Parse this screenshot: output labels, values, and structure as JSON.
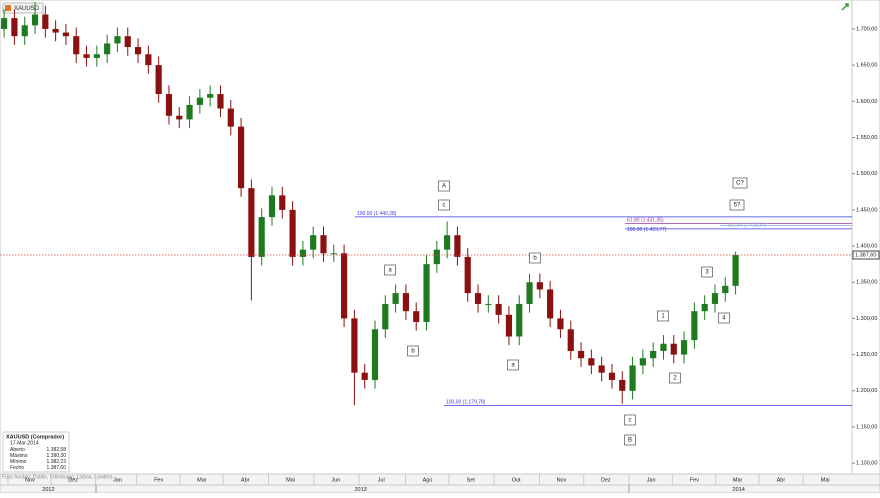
{
  "chart_data": {
    "type": "candlestick",
    "title": "XAUUSD",
    "categories": [
      null,
      null,
      null,
      null,
      null,
      null,
      null,
      null,
      null,
      null,
      null,
      null,
      null,
      null,
      null,
      null,
      null,
      null,
      null,
      null,
      null,
      null,
      null,
      null,
      null,
      null,
      null,
      null,
      null,
      null,
      null,
      null,
      null,
      null,
      null,
      null,
      null,
      null,
      null,
      null,
      null,
      null,
      null,
      null,
      null,
      null,
      null,
      null,
      null,
      null,
      null,
      null,
      null,
      null,
      null,
      null,
      null,
      null,
      null,
      null,
      null,
      null,
      null,
      null,
      null,
      null,
      null,
      null,
      null,
      null,
      null,
      null
    ],
    "open": [
      1700,
      1715,
      1690,
      1705,
      1720,
      1700,
      1695,
      1690,
      1665,
      1660,
      1665,
      1680,
      1690,
      1675,
      1665,
      1650,
      1610,
      1580,
      1575,
      1595,
      1605,
      1610,
      1590,
      1565,
      1480,
      1385,
      1440,
      1470,
      1450,
      1385,
      1395,
      1415,
      1390,
      1390,
      1300,
      1225,
      1215,
      1285,
      1320,
      1335,
      1310,
      1295,
      1375,
      1395,
      1415,
      1385,
      1335,
      1320,
      1320,
      1305,
      1275,
      1320,
      1350,
      1340,
      1300,
      1285,
      1255,
      1245,
      1235,
      1225,
      1215,
      1200,
      1235,
      1245,
      1255,
      1265,
      1250,
      1270,
      1310,
      1320,
      1335,
      1345
    ],
    "high": [
      1727,
      1727,
      1717,
      1737,
      1732,
      1712,
      1707,
      1702,
      1677,
      1677,
      1692,
      1702,
      1702,
      1687,
      1677,
      1662,
      1622,
      1592,
      1607,
      1617,
      1622,
      1622,
      1602,
      1577,
      1492,
      1452,
      1482,
      1482,
      1462,
      1407,
      1427,
      1427,
      1402,
      1402,
      1312,
      1237,
      1297,
      1332,
      1347,
      1347,
      1322,
      1387,
      1407,
      1434,
      1427,
      1397,
      1347,
      1332,
      1332,
      1317,
      1332,
      1362,
      1362,
      1352,
      1312,
      1297,
      1267,
      1257,
      1247,
      1237,
      1227,
      1247,
      1257,
      1267,
      1277,
      1277,
      1282,
      1322,
      1332,
      1347,
      1357,
      1392
    ],
    "low": [
      1688,
      1678,
      1678,
      1693,
      1688,
      1683,
      1678,
      1653,
      1648,
      1648,
      1653,
      1668,
      1663,
      1653,
      1638,
      1598,
      1568,
      1563,
      1563,
      1583,
      1593,
      1578,
      1553,
      1468,
      1325,
      1373,
      1428,
      1438,
      1373,
      1373,
      1383,
      1378,
      1378,
      1288,
      1180,
      1203,
      1203,
      1273,
      1308,
      1298,
      1283,
      1283,
      1363,
      1383,
      1373,
      1323,
      1308,
      1308,
      1293,
      1263,
      1263,
      1308,
      1328,
      1288,
      1273,
      1243,
      1233,
      1223,
      1213,
      1203,
      1182,
      1188,
      1223,
      1233,
      1243,
      1238,
      1238,
      1258,
      1298,
      1308,
      1323,
      1333
    ],
    "close": [
      1715,
      1690,
      1705,
      1720,
      1700,
      1695,
      1690,
      1665,
      1660,
      1665,
      1680,
      1690,
      1675,
      1665,
      1650,
      1610,
      1580,
      1575,
      1595,
      1605,
      1610,
      1590,
      1565,
      1480,
      1385,
      1440,
      1470,
      1450,
      1385,
      1395,
      1415,
      1390,
      1390,
      1300,
      1225,
      1215,
      1285,
      1320,
      1335,
      1310,
      1295,
      1375,
      1395,
      1415,
      1385,
      1335,
      1320,
      1320,
      1305,
      1275,
      1320,
      1350,
      1340,
      1300,
      1285,
      1255,
      1245,
      1235,
      1225,
      1215,
      1200,
      1235,
      1245,
      1255,
      1265,
      1250,
      1270,
      1310,
      1320,
      1335,
      1345,
      1387.6
    ],
    "up_color": "#1f7a1f",
    "down_color": "#8b1010",
    "ylim": [
      1085,
      1740
    ],
    "yticks": [
      {
        "value": 1100,
        "label": "1.100,00"
      },
      {
        "value": 1150,
        "label": "1.150,00"
      },
      {
        "value": 1200,
        "label": "1.200,00"
      },
      {
        "value": 1250,
        "label": "1.250,00"
      },
      {
        "value": 1300,
        "label": "1.300,00"
      },
      {
        "value": 1350,
        "label": "1.350,00"
      },
      {
        "value": 1400,
        "label": "1.400,00"
      },
      {
        "value": 1450,
        "label": "1.450,00"
      },
      {
        "value": 1500,
        "label": "1.500,00"
      },
      {
        "value": 1550,
        "label": "1.550,00"
      },
      {
        "value": 1600,
        "label": "1.600,00"
      },
      {
        "value": 1650,
        "label": "1.650,00"
      },
      {
        "value": 1700,
        "label": "1.700,00"
      }
    ],
    "xlim": [
      -0.4,
      82.3
    ],
    "xticks": [
      {
        "value": 2.5,
        "label": "Nov"
      },
      {
        "value": 6.7,
        "label": "Dez"
      },
      {
        "value": 11,
        "label": "Jan"
      },
      {
        "value": 15,
        "label": "Fev"
      },
      {
        "value": 19.2,
        "label": "Mar"
      },
      {
        "value": 23.4,
        "label": "Abr"
      },
      {
        "value": 27.8,
        "label": "Mai"
      },
      {
        "value": 32.2,
        "label": "Jun"
      },
      {
        "value": 36.6,
        "label": "Jul"
      },
      {
        "value": 41.1,
        "label": "Ago"
      },
      {
        "value": 45.3,
        "label": "Set"
      },
      {
        "value": 49.7,
        "label": "Out"
      },
      {
        "value": 54.1,
        "label": "Nov"
      },
      {
        "value": 58.4,
        "label": "Dez"
      },
      {
        "value": 62.8,
        "label": "Jan"
      },
      {
        "value": 67,
        "label": "Fev"
      },
      {
        "value": 71.2,
        "label": "Mar"
      },
      {
        "value": 75.4,
        "label": "Abr"
      },
      {
        "value": 79.7,
        "label": "Mai"
      }
    ],
    "year_ticks": [
      {
        "value": 4.3,
        "label": "2012"
      },
      {
        "value": 34.6,
        "label": "2013"
      },
      {
        "value": 71.3,
        "label": "2014"
      }
    ],
    "last_price": {
      "value": 1387.6,
      "label": "1.387,60"
    },
    "levels": [
      {
        "value": 1440.28,
        "label": "100,00 (1.440,28)",
        "color": "#3a3ad8"
      },
      {
        "value": 1431.35,
        "label": "61,80 (1.431,35)",
        "color": "#9a3aa8"
      },
      {
        "value": 1428.5,
        "label": "161,80 (1.428,50)",
        "color": "#9ab4d8"
      },
      {
        "value": 1423.77,
        "label": "100,00 (1.423,77)",
        "color": "#3a3ad8"
      },
      {
        "value": 1179.78,
        "label": "100,00 (1.179,78)",
        "color": "#3a3ad8"
      }
    ],
    "wave_labels": [
      "A",
      "c",
      "a",
      "b",
      "b",
      "a",
      "c",
      "B",
      "C?",
      "5?",
      "3",
      "1",
      "4",
      "2"
    ],
    "info_box": {
      "title": "XAUUSD (Comprador)",
      "date": "17-Mar-2014",
      "rows": [
        [
          "Aberto",
          "1.382,58"
        ],
        [
          "Máximo",
          "1.390,30"
        ],
        [
          "Mínimo",
          "1.382,23"
        ],
        [
          "Fecho",
          "1.387,60"
        ]
      ]
    },
    "footer": "Fuso horário: Dublin, Edimburgo, Lisboa, Londres"
  }
}
